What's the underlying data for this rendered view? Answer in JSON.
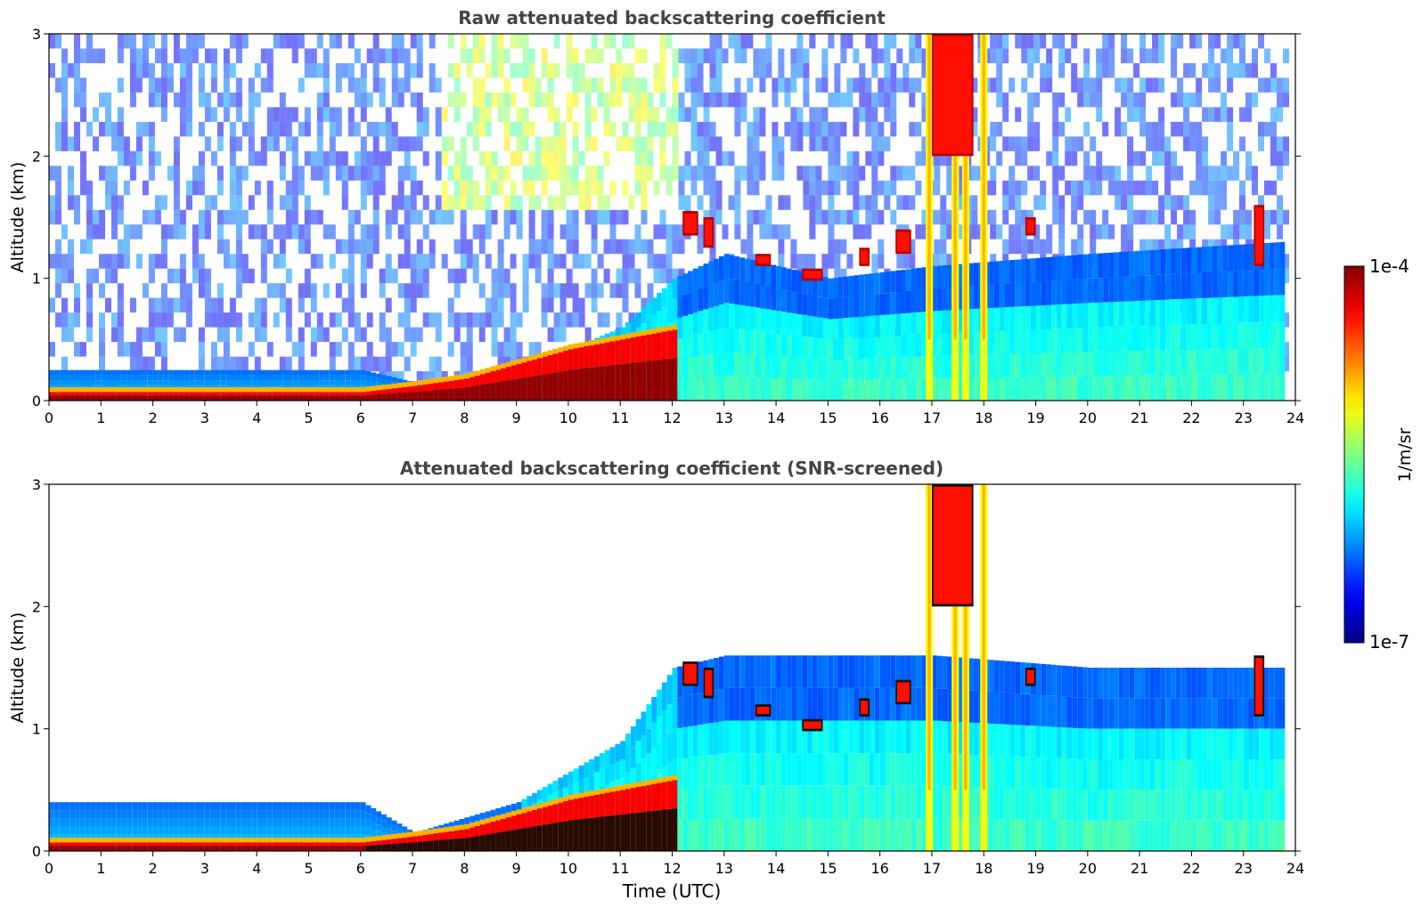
{
  "chart_data": [
    {
      "type": "heatmap",
      "title": "Raw attenuated backscattering coefficient",
      "xlabel": "",
      "ylabel": "Altitude (km)",
      "xlim": [
        0,
        24
      ],
      "ylim": [
        0,
        3
      ],
      "xticks": [
        "0",
        "1",
        "2",
        "3",
        "4",
        "5",
        "6",
        "7",
        "8",
        "9",
        "10",
        "11",
        "12",
        "13",
        "14",
        "15",
        "16",
        "17",
        "18",
        "19",
        "20",
        "21",
        "22",
        "23",
        "24"
      ],
      "yticks": [
        "0",
        "1",
        "2",
        "3"
      ],
      "colorscale": "jet",
      "data_end_hour": 23.8,
      "features": {
        "surface_layer": {
          "t": [
            0,
            6,
            7,
            8,
            9,
            10,
            11,
            12
          ],
          "z_km": [
            0.07,
            0.07,
            0.12,
            0.18,
            0.3,
            0.42,
            0.5,
            0.58
          ]
        },
        "mixed_layer_top": {
          "t": [
            0,
            6,
            7,
            9,
            11,
            12,
            13,
            15,
            17,
            20,
            23.8
          ],
          "z_km": [
            0.25,
            0.25,
            0.15,
            0.25,
            0.6,
            1.0,
            1.2,
            1.0,
            1.1,
            1.2,
            1.3
          ]
        },
        "clouds": [
          {
            "t0": 12.2,
            "t1": 12.5,
            "z0": 1.35,
            "z1": 1.55
          },
          {
            "t0": 12.6,
            "t1": 12.8,
            "z0": 1.25,
            "z1": 1.5
          },
          {
            "t0": 13.6,
            "t1": 13.9,
            "z0": 1.1,
            "z1": 1.2
          },
          {
            "t0": 14.5,
            "t1": 14.9,
            "z0": 0.98,
            "z1": 1.08
          },
          {
            "t0": 15.6,
            "t1": 15.8,
            "z0": 1.1,
            "z1": 1.25
          },
          {
            "t0": 16.3,
            "t1": 16.6,
            "z0": 1.2,
            "z1": 1.4
          },
          {
            "t0": 17.0,
            "t1": 17.8,
            "z0": 2.0,
            "z1": 3.0
          },
          {
            "t0": 18.8,
            "t1": 19.0,
            "z0": 1.35,
            "z1": 1.5
          },
          {
            "t0": 23.2,
            "t1": 23.4,
            "z0": 1.1,
            "z1": 1.6
          }
        ],
        "precip_columns": [
          16.95,
          17.45,
          17.65,
          18.0
        ],
        "screened": false
      }
    },
    {
      "type": "heatmap",
      "title": "Attenuated backscattering coefficient (SNR-screened)",
      "xlabel": "Time (UTC)",
      "ylabel": "Altitude (km)",
      "xlim": [
        0,
        24
      ],
      "ylim": [
        0,
        3
      ],
      "xticks": [
        "0",
        "1",
        "2",
        "3",
        "4",
        "5",
        "6",
        "7",
        "8",
        "9",
        "10",
        "11",
        "12",
        "13",
        "14",
        "15",
        "16",
        "17",
        "18",
        "19",
        "20",
        "21",
        "22",
        "23",
        "24"
      ],
      "yticks": [
        "0",
        "1",
        "2",
        "3"
      ],
      "colorscale": "jet",
      "data_end_hour": 23.8,
      "features": {
        "surface_layer": {
          "t": [
            0,
            6,
            7,
            8,
            9,
            10,
            11,
            12
          ],
          "z_km": [
            0.07,
            0.07,
            0.12,
            0.18,
            0.3,
            0.42,
            0.5,
            0.58
          ]
        },
        "mixed_layer_top": {
          "t": [
            0,
            6,
            7,
            9,
            11,
            12,
            13,
            15,
            17,
            20,
            23.8
          ],
          "z_km": [
            0.4,
            0.4,
            0.15,
            0.4,
            0.9,
            1.5,
            1.6,
            1.6,
            1.6,
            1.5,
            1.5
          ]
        },
        "clouds": [
          {
            "t0": 12.2,
            "t1": 12.5,
            "z0": 1.35,
            "z1": 1.55
          },
          {
            "t0": 12.6,
            "t1": 12.8,
            "z0": 1.25,
            "z1": 1.5
          },
          {
            "t0": 13.6,
            "t1": 13.9,
            "z0": 1.1,
            "z1": 1.2
          },
          {
            "t0": 14.5,
            "t1": 14.9,
            "z0": 0.98,
            "z1": 1.08
          },
          {
            "t0": 15.6,
            "t1": 15.8,
            "z0": 1.1,
            "z1": 1.25
          },
          {
            "t0": 16.3,
            "t1": 16.6,
            "z0": 1.2,
            "z1": 1.4
          },
          {
            "t0": 17.0,
            "t1": 17.8,
            "z0": 2.0,
            "z1": 3.0
          },
          {
            "t0": 18.8,
            "t1": 19.0,
            "z0": 1.35,
            "z1": 1.5
          },
          {
            "t0": 23.2,
            "t1": 23.4,
            "z0": 1.1,
            "z1": 1.6
          }
        ],
        "precip_columns": [
          16.95,
          17.45,
          17.65,
          18.0
        ],
        "screened": true
      }
    }
  ],
  "colorbar": {
    "label": "1/m/sr",
    "max_label": "1e-4",
    "min_label": "1e-7",
    "scale": "log",
    "range": [
      1e-07,
      0.0001
    ]
  }
}
